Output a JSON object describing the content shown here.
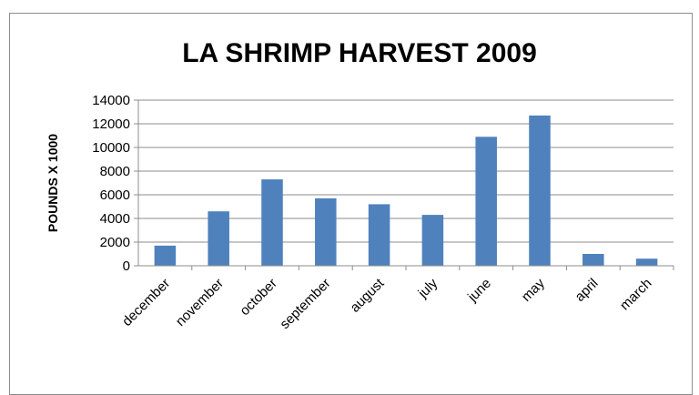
{
  "chart_data": {
    "type": "bar",
    "title": "LA SHRIMP HARVEST 2009",
    "xlabel": "",
    "ylabel": "POUNDS X 1000",
    "categories": [
      "december",
      "november",
      "october",
      "september",
      "august",
      "july",
      "june",
      "may",
      "april",
      "march"
    ],
    "values": [
      1700,
      4600,
      7300,
      5700,
      5200,
      4300,
      10900,
      12700,
      1000,
      600
    ],
    "ylim": [
      0,
      14000
    ],
    "yticks": [
      0,
      2000,
      4000,
      6000,
      8000,
      10000,
      12000,
      14000
    ],
    "grid": true,
    "legend": "none",
    "bar_color": "#4f81bd"
  }
}
